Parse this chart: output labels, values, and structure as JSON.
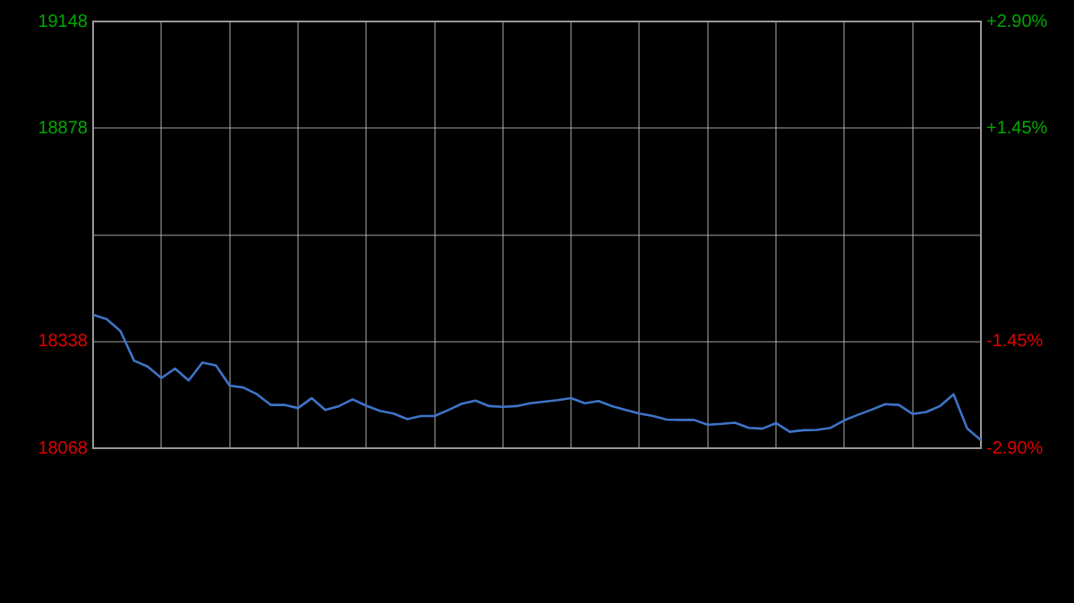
{
  "chart_data": {
    "type": "line",
    "categories": [
      null,
      null,
      null,
      null,
      null,
      null,
      null,
      null,
      null,
      null,
      null,
      null,
      null,
      null,
      null,
      null,
      null,
      null,
      null,
      null,
      null,
      null,
      null,
      null,
      null,
      null,
      null,
      null,
      null,
      null,
      null,
      null,
      null,
      null,
      null,
      null,
      null,
      null,
      null,
      null,
      null,
      null,
      null,
      null,
      null,
      null,
      null,
      null,
      null,
      null,
      null,
      null,
      null,
      null,
      null,
      null,
      null,
      null,
      null,
      null,
      null,
      null,
      null,
      null,
      null,
      null
    ],
    "series": [
      {
        "color": "#3f74c8",
        "values": [
          18406,
          18395,
          18365,
          18290,
          18275,
          18246,
          18270,
          18240,
          18285,
          18278,
          18227,
          18222,
          18205,
          18178,
          18178,
          18170,
          18195,
          18165,
          18175,
          18192,
          18176,
          18163,
          18156,
          18142,
          18150,
          18150,
          18165,
          18181,
          18189,
          18175,
          18173,
          18175,
          18182,
          18186,
          18190,
          18195,
          18182,
          18188,
          18175,
          18165,
          18156,
          18150,
          18141,
          18140,
          18140,
          18128,
          18130,
          18133,
          18120,
          18118,
          18132,
          18110,
          18114,
          18115,
          18120,
          18139,
          18153,
          18166,
          18180,
          18178,
          18155,
          18160,
          18175,
          18205,
          18118,
          18089
        ]
      }
    ],
    "ylim": [
      18068,
      19148
    ],
    "yticks": [
      18068,
      18338,
      {
        "value": 18608,
        "label": null
      },
      18878,
      19148
    ],
    "y2lim": [
      -2.9,
      2.9
    ],
    "y2ticks": [
      {
        "value": -2.9,
        "label": "-2.90%"
      },
      {
        "value": -1.45,
        "label": "-1.45%"
      },
      {
        "value": 0,
        "label": null
      },
      {
        "value": 1.45,
        "label": "+1.45%"
      },
      {
        "value": 2.9,
        "label": "+2.90%"
      }
    ],
    "grid": true,
    "marker": "none",
    "line_style": "solid",
    "legend": false
  }
}
